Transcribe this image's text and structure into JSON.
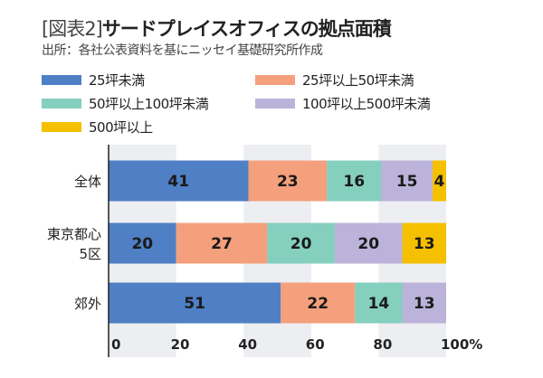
{
  "title_bracket": "[図表2]",
  "title": "サードプレイスオフィスの拠点面積",
  "subtitle": "出所：各社公表資料を基にニッセイ基礎研究所作成",
  "chart_data": {
    "type": "bar",
    "orientation": "horizontal",
    "stacked": true,
    "categories": [
      "全体",
      "東京都心5区",
      "郊外"
    ],
    "category_labels": [
      [
        "全体"
      ],
      [
        "東京都心",
        "5区"
      ],
      [
        "郊外"
      ]
    ],
    "series": [
      {
        "name": "25坪未満",
        "color": "#4f7fc4",
        "values": [
          41,
          20,
          51
        ]
      },
      {
        "name": "25坪以上50坪未満",
        "color": "#f4a07c",
        "values": [
          23,
          27,
          22
        ]
      },
      {
        "name": "50坪以上100坪未満",
        "color": "#85cfbf",
        "values": [
          16,
          20,
          14
        ]
      },
      {
        "name": "100坪以上500坪未満",
        "color": "#bbb3da",
        "values": [
          15,
          20,
          13
        ]
      },
      {
        "name": "500坪以上",
        "color": "#f5c000",
        "values": [
          4,
          13,
          0
        ]
      }
    ],
    "xlim": [
      0,
      100
    ],
    "xticks": [
      "0",
      "20",
      "40",
      "60",
      "80",
      "100%"
    ],
    "legend_position": "top",
    "grid": "alternating vertical bands",
    "data_labels": true
  }
}
